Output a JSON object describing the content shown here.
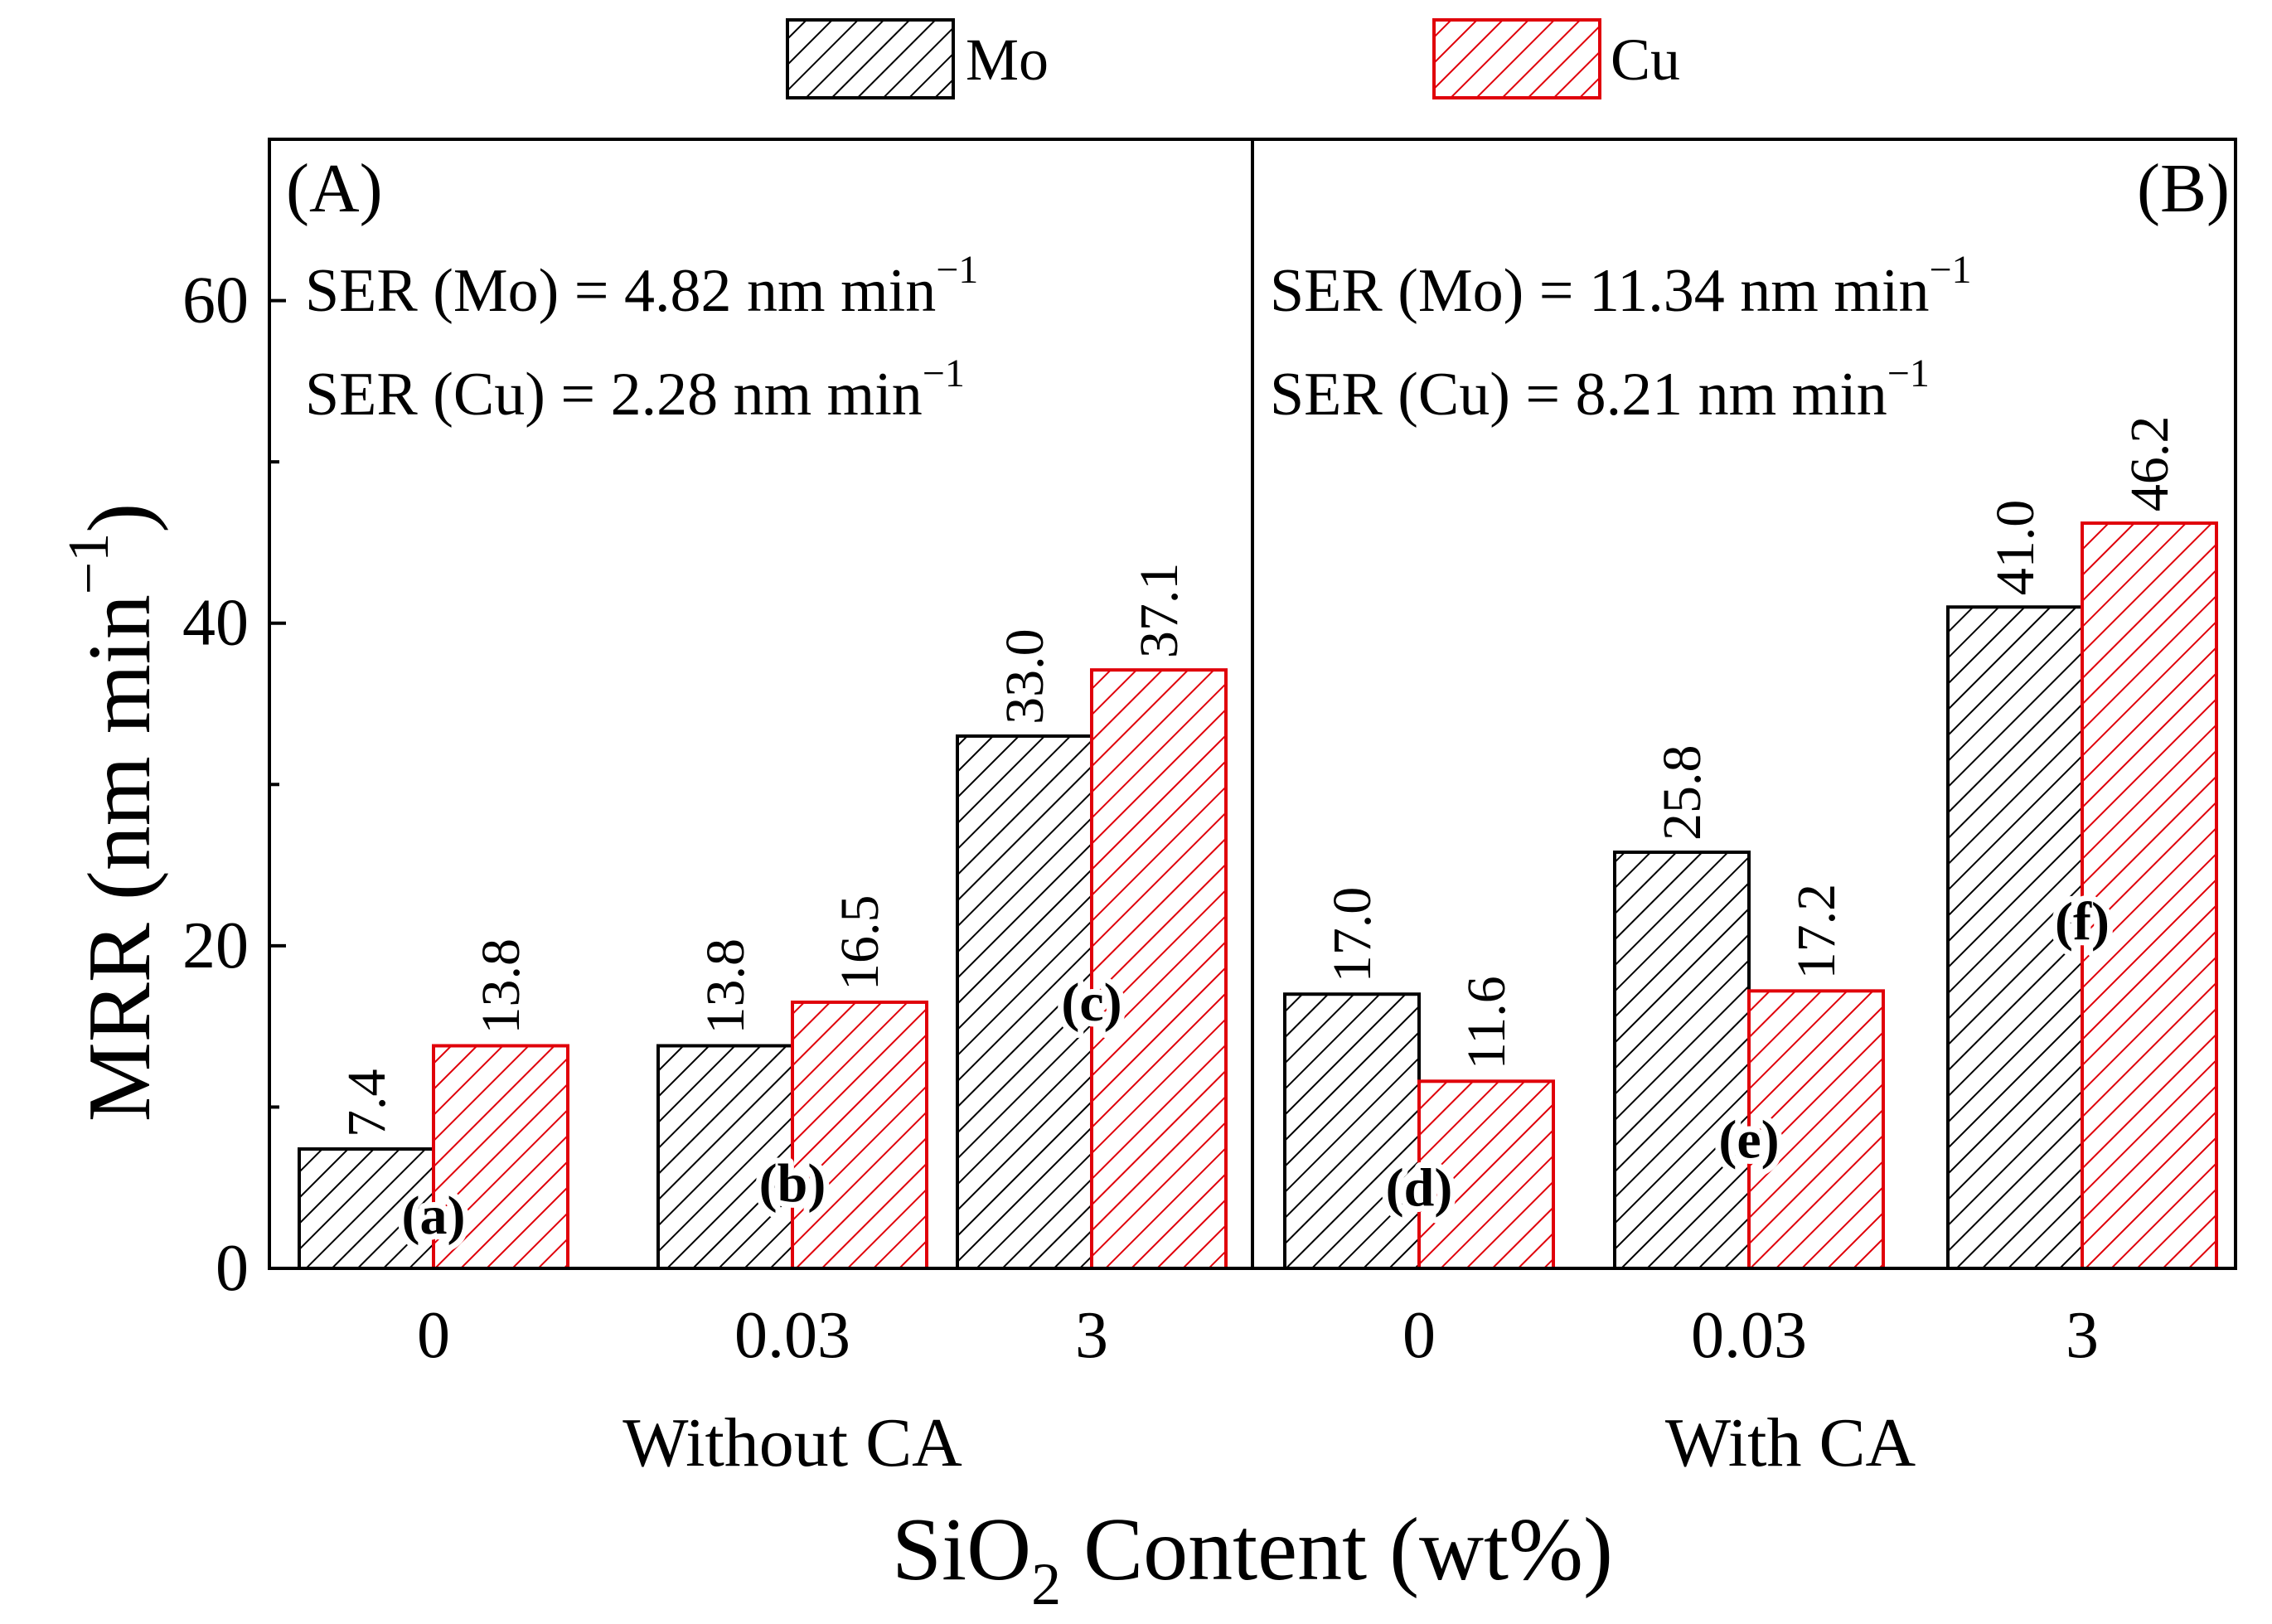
{
  "chart_data": {
    "type": "bar",
    "ylabel_main": "MRR (nm min",
    "ylabel_sup": "−1",
    "ylabel_close": ")",
    "xlabel_pre": "SiO",
    "xlabel_sub": "2",
    "xlabel_post": " Content (wt%)",
    "ylim": [
      0,
      70
    ],
    "yticks": [
      0,
      20,
      40,
      60
    ],
    "legend": [
      {
        "name": "Mo",
        "color": "#000000"
      },
      {
        "name": "Cu",
        "color": "#e0000a"
      }
    ],
    "panels": [
      {
        "label": "(A)",
        "group_label": "Without CA",
        "ser": [
          {
            "text": "SER (Mo) = 4.82 nm min",
            "sup": "−1"
          },
          {
            "text": "SER (Cu) = 2.28 nm min",
            "sup": "−1"
          }
        ],
        "categories": [
          "0",
          "0.03",
          "3"
        ],
        "series": [
          {
            "name": "Mo",
            "values": [
              7.4,
              13.8,
              33.0
            ],
            "labels": [
              "7.4",
              "13.8",
              "33.0"
            ]
          },
          {
            "name": "Cu",
            "values": [
              13.8,
              16.5,
              37.1
            ],
            "labels": [
              "13.8",
              "16.5",
              "37.1"
            ]
          }
        ],
        "annotations": [
          {
            "text": "(a)",
            "y": 3.3
          },
          {
            "text": "(b)",
            "y": 5.3
          },
          {
            "text": "(c)",
            "y": 16.5
          }
        ]
      },
      {
        "label": "(B)",
        "group_label": "With CA",
        "ser": [
          {
            "text": "SER (Mo) = 11.34 nm min",
            "sup": "−1"
          },
          {
            "text": "SER (Cu) = 8.21 nm min",
            "sup": "−1"
          }
        ],
        "categories": [
          "0",
          "0.03",
          "3"
        ],
        "series": [
          {
            "name": "Mo",
            "values": [
              17.0,
              25.8,
              41.0
            ],
            "labels": [
              "17.0",
              "25.8",
              "41.0"
            ]
          },
          {
            "name": "Cu",
            "values": [
              11.6,
              17.2,
              46.2
            ],
            "labels": [
              "11.6",
              "17.2",
              "46.2"
            ]
          }
        ],
        "annotations": [
          {
            "text": "(d)",
            "y": 5.0
          },
          {
            "text": "(e)",
            "y": 8.0
          },
          {
            "text": "(f)",
            "y": 21.5
          }
        ]
      }
    ]
  }
}
